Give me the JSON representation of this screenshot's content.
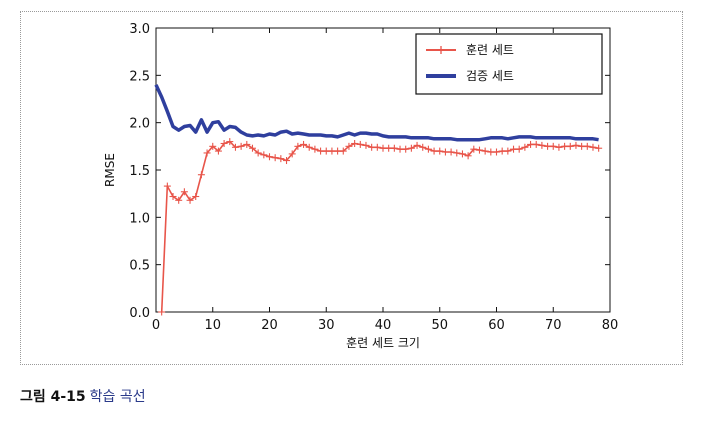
{
  "chart_data": {
    "type": "line",
    "xlabel": "훈련 세트 크기",
    "ylabel": "RMSE",
    "xlim": [
      0,
      80
    ],
    "ylim": [
      0.0,
      3.0
    ],
    "x_ticks": [
      "0",
      "10",
      "20",
      "30",
      "40",
      "50",
      "60",
      "70",
      "80"
    ],
    "y_ticks": [
      "0.0",
      "0.5",
      "1.0",
      "1.5",
      "2.0",
      "2.5",
      "3.0"
    ],
    "legend_position": "top-right",
    "grid": false,
    "series": [
      {
        "name": "훈련 세트",
        "color": "#e8554a",
        "style": "line-plus-markers",
        "x": [
          1,
          2,
          3,
          4,
          5,
          6,
          7,
          8,
          9,
          10,
          11,
          12,
          13,
          14,
          15,
          16,
          17,
          18,
          19,
          20,
          21,
          22,
          23,
          24,
          25,
          26,
          27,
          28,
          29,
          30,
          31,
          32,
          33,
          34,
          35,
          36,
          37,
          38,
          39,
          40,
          41,
          42,
          43,
          44,
          45,
          46,
          47,
          48,
          49,
          50,
          51,
          52,
          53,
          54,
          55,
          56,
          57,
          58,
          59,
          60,
          61,
          62,
          63,
          64,
          65,
          66,
          67,
          68,
          69,
          70,
          71,
          72,
          73,
          74,
          75,
          76,
          77,
          78
        ],
        "values": [
          0.0,
          1.33,
          1.22,
          1.18,
          1.27,
          1.18,
          1.22,
          1.45,
          1.68,
          1.75,
          1.7,
          1.78,
          1.8,
          1.74,
          1.75,
          1.77,
          1.73,
          1.68,
          1.66,
          1.64,
          1.63,
          1.62,
          1.6,
          1.67,
          1.75,
          1.77,
          1.74,
          1.72,
          1.7,
          1.7,
          1.7,
          1.7,
          1.7,
          1.75,
          1.78,
          1.77,
          1.76,
          1.74,
          1.74,
          1.73,
          1.73,
          1.73,
          1.72,
          1.72,
          1.73,
          1.76,
          1.74,
          1.72,
          1.7,
          1.7,
          1.69,
          1.69,
          1.68,
          1.67,
          1.65,
          1.72,
          1.71,
          1.7,
          1.69,
          1.69,
          1.7,
          1.7,
          1.72,
          1.72,
          1.74,
          1.77,
          1.77,
          1.76,
          1.75,
          1.75,
          1.74,
          1.75,
          1.75,
          1.76,
          1.75,
          1.75,
          1.74,
          1.73
        ]
      },
      {
        "name": "검증 세트",
        "color": "#2f3f9e",
        "style": "thick-line",
        "x": [
          0,
          1,
          2,
          3,
          4,
          5,
          6,
          7,
          8,
          9,
          10,
          11,
          12,
          13,
          14,
          15,
          16,
          17,
          18,
          19,
          20,
          21,
          22,
          23,
          24,
          25,
          26,
          27,
          28,
          29,
          30,
          31,
          32,
          33,
          34,
          35,
          36,
          37,
          38,
          39,
          40,
          41,
          42,
          43,
          44,
          45,
          46,
          47,
          48,
          49,
          50,
          51,
          52,
          53,
          54,
          55,
          56,
          57,
          58,
          59,
          60,
          61,
          62,
          63,
          64,
          65,
          66,
          67,
          68,
          69,
          70,
          71,
          72,
          73,
          74,
          75,
          76,
          77,
          78
        ],
        "values": [
          2.4,
          2.27,
          2.12,
          1.96,
          1.92,
          1.96,
          1.97,
          1.9,
          2.03,
          1.9,
          2.0,
          2.01,
          1.92,
          1.96,
          1.95,
          1.9,
          1.87,
          1.86,
          1.87,
          1.86,
          1.88,
          1.87,
          1.9,
          1.91,
          1.88,
          1.89,
          1.88,
          1.87,
          1.87,
          1.87,
          1.86,
          1.86,
          1.85,
          1.87,
          1.89,
          1.87,
          1.89,
          1.89,
          1.88,
          1.88,
          1.86,
          1.85,
          1.85,
          1.85,
          1.85,
          1.84,
          1.84,
          1.84,
          1.84,
          1.83,
          1.83,
          1.83,
          1.83,
          1.82,
          1.82,
          1.82,
          1.82,
          1.82,
          1.83,
          1.84,
          1.84,
          1.84,
          1.83,
          1.84,
          1.85,
          1.85,
          1.85,
          1.84,
          1.84,
          1.84,
          1.84,
          1.84,
          1.84,
          1.84,
          1.83,
          1.83,
          1.83,
          1.83,
          1.82
        ]
      }
    ]
  },
  "caption": {
    "number": "그림 4-15",
    "text": "학습 곡선"
  }
}
